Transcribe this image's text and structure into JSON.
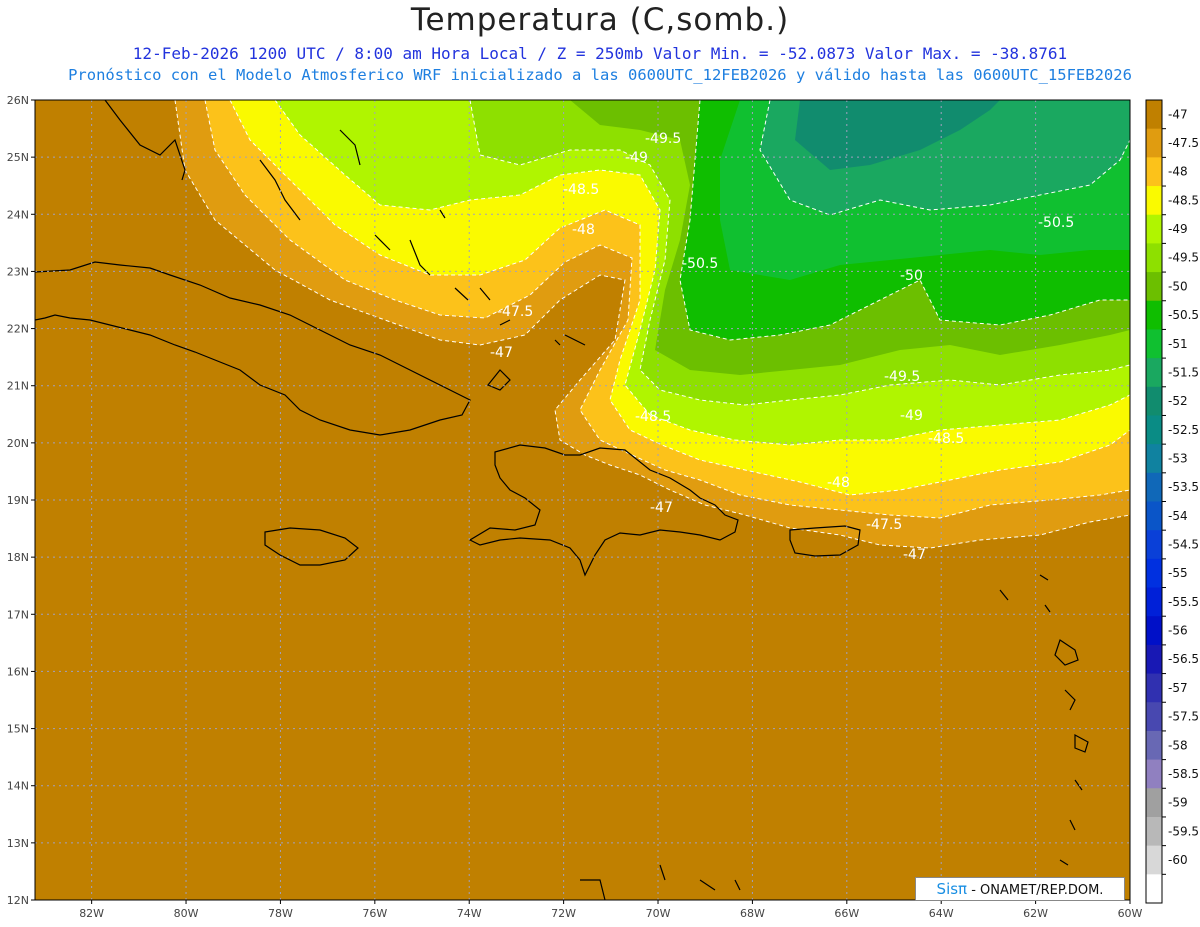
{
  "header": {
    "title": "Temperatura (C,somb.)",
    "line1": "12-Feb-2026  1200 UTC / 8:00 am Hora Local / Z = 250mb  Valor Min. = -52.0873  Valor Max. = -38.8761",
    "line2": "Pronóstico con el Modelo Atmosferico WRF inicializado a las 0600UTC_12FEB2026 y válido hasta las  0600UTC_15FEB2026"
  },
  "axes": {
    "lat_labels": [
      "26N",
      "25N",
      "24N",
      "23N",
      "22N",
      "21N",
      "20N",
      "19N",
      "18N",
      "17N",
      "16N",
      "15N",
      "14N",
      "13N",
      "12N"
    ],
    "lon_labels": [
      "82W",
      "80W",
      "78W",
      "76W",
      "74W",
      "72W",
      "70W",
      "68W",
      "66W",
      "64W",
      "62W",
      "60W"
    ],
    "lat_range": [
      12,
      26
    ],
    "lon_range": [
      -83.2,
      -60
    ]
  },
  "colorbar": {
    "labels": [
      "-47",
      "-47.5",
      "-48",
      "-48.5",
      "-49",
      "-49.5",
      "-50",
      "-50.5",
      "-51",
      "-51.5",
      "-52",
      "-52.5",
      "-53",
      "-53.5",
      "-54",
      "-54.5",
      "-55",
      "-55.5",
      "-56",
      "-56.5",
      "-57",
      "-57.5",
      "-58",
      "-58.5",
      "-59",
      "-59.5",
      "-60"
    ],
    "colors": [
      "#c08000",
      "#e09c10",
      "#fcc21a",
      "#fafa00",
      "#b0f500",
      "#8ee000",
      "#6cbf00",
      "#0fbe00",
      "#10c030",
      "#1aa860",
      "#118c6e",
      "#0a8c85",
      "#1082a0",
      "#1068b8",
      "#0a55c8",
      "#0a40d8",
      "#0030e0",
      "#0020d8",
      "#0010c8",
      "#1818b4",
      "#3030b0",
      "#4848b0",
      "#6868b4",
      "#9080c0",
      "#a0a0a0",
      "#b8b8b8",
      "#d8d8d8",
      "#ffffff"
    ]
  },
  "contour_labels": [
    "-49.5",
    "-49",
    "-48.5",
    "-48",
    "-47.5",
    "-47",
    "-50.5",
    "-50",
    "-49.5",
    "-49",
    "-48.5",
    "-48",
    "-47.5",
    "-47",
    "-48.5",
    "-47",
    "-50.5"
  ],
  "credit": {
    "brand": "Sisπ",
    "text": " - ONAMET/REP.DOM."
  }
}
